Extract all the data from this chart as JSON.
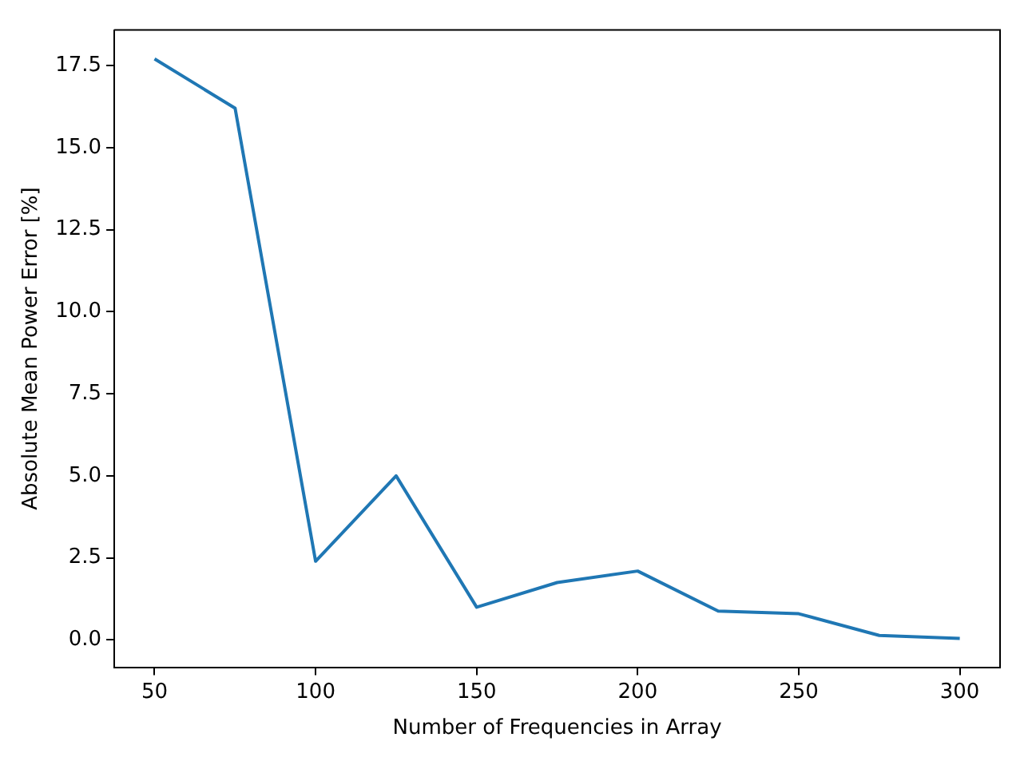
{
  "chart_data": {
    "type": "line",
    "xlabel": "Number of Frequencies in Array",
    "ylabel": "Absolute Mean Power Error [%]",
    "x": [
      50,
      75,
      100,
      125,
      150,
      175,
      200,
      225,
      250,
      275,
      300
    ],
    "series": [
      {
        "color": "#1f77b4",
        "values": [
          17.7,
          16.2,
          2.4,
          5.0,
          1.0,
          1.75,
          2.1,
          0.88,
          0.8,
          0.14,
          0.05
        ]
      }
    ],
    "xlim": [
      37.5,
      312.5
    ],
    "xticks": [
      50,
      100,
      150,
      200,
      250,
      300
    ],
    "ylim": [
      -0.83,
      18.58
    ],
    "yticks": [
      {
        "value": 0,
        "label": "0.0"
      },
      {
        "value": 2.5,
        "label": "2.5"
      },
      {
        "value": 5,
        "label": "5.0"
      },
      {
        "value": 7.5,
        "label": "7.5"
      },
      {
        "value": 10,
        "label": "10.0"
      },
      {
        "value": 12.5,
        "label": "12.5"
      },
      {
        "value": 15,
        "label": "15.0"
      },
      {
        "value": 17.5,
        "label": "17.5"
      }
    ],
    "grid": false,
    "legend": false,
    "marker": "none",
    "line_style": "solid"
  }
}
